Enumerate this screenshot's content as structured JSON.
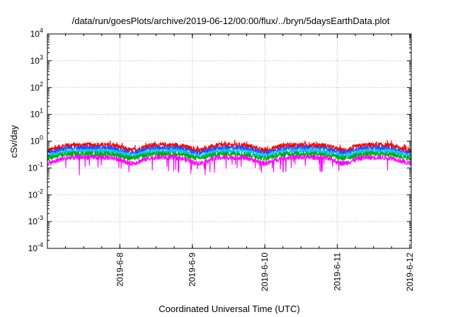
{
  "chart_data": {
    "type": "line",
    "title": "/data/run/goesPlots/archive/2019-06-12/00:00/flux/../bryn/5daysEarthData.plot",
    "xlabel": "Coordinated Universal Time (UTC)",
    "ylabel": "cSv/day",
    "y_scale": "log",
    "ylim": [
      0.0001,
      10000
    ],
    "y_ticks": [
      {
        "value": 0.0001,
        "base": "10",
        "exp": "-4"
      },
      {
        "value": 0.001,
        "base": "10",
        "exp": "-3"
      },
      {
        "value": 0.01,
        "base": "10",
        "exp": "-2"
      },
      {
        "value": 0.1,
        "base": "10",
        "exp": "-1"
      },
      {
        "value": 1,
        "base": "10",
        "exp": "0"
      },
      {
        "value": 10,
        "base": "10",
        "exp": "1"
      },
      {
        "value": 100,
        "base": "10",
        "exp": "2"
      },
      {
        "value": 1000,
        "base": "10",
        "exp": "3"
      },
      {
        "value": 10000,
        "base": "10",
        "exp": "4"
      }
    ],
    "xlim": [
      "2019-06-07T00:00",
      "2019-06-12T00:30"
    ],
    "x_ticks": [
      "2019-6-8",
      "2019-6-9",
      "2019-6-10",
      "2019-6-11",
      "2019-6-12"
    ],
    "x_tick_dates": [
      "2019-06-08T00:00",
      "2019-06-09T00:00",
      "2019-06-10T00:00",
      "2019-06-11T00:00",
      "2019-06-12T00:00"
    ],
    "grid": true,
    "series": [
      {
        "color": "#ff0000",
        "level_high": 0.72,
        "level_low": 0.3
      },
      {
        "color": "#1e50ff",
        "level_high": 0.56,
        "level_low": 0.26
      },
      {
        "color": "#00c8ff",
        "level_high": 0.43,
        "level_low": 0.2
      },
      {
        "color": "#00aa00",
        "level_high": 0.34,
        "level_low": 0.17
      },
      {
        "color": "#ff00ff",
        "level_high": 0.25,
        "level_low": 0.09
      }
    ],
    "dips_at": [
      "2019-06-07T00:00",
      "2019-06-08T04:00",
      "2019-06-09T02:00",
      "2019-06-10T00:00",
      "2019-06-11T02:00",
      "2019-06-12T00:00"
    ]
  }
}
